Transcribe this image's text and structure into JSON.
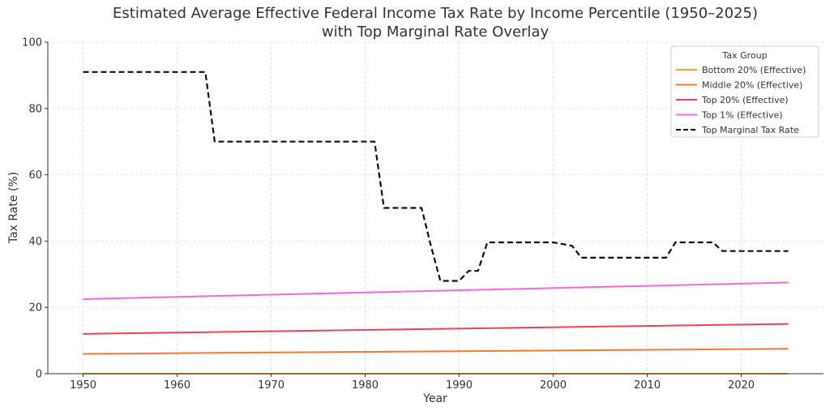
{
  "chart_data": {
    "type": "line",
    "title_line1": "Estimated Average Effective Federal Income Tax Rate by Income Percentile (1950–2025)",
    "title_line2": "with Top Marginal Rate Overlay",
    "xlabel": "Year",
    "ylabel": "Tax Rate (%)",
    "xlim": [
      1946.25,
      2028.75
    ],
    "ylim": [
      0,
      100
    ],
    "xticks": [
      1950,
      1960,
      1970,
      1980,
      1990,
      2000,
      2010,
      2020
    ],
    "yticks": [
      0,
      20,
      40,
      60,
      80,
      100
    ],
    "grid": true,
    "legend": {
      "title": "Tax Group",
      "placement": "top-right"
    },
    "series": [
      {
        "name": "Bottom 20% (Effective)",
        "color": "#f5a623",
        "style": "solid",
        "x": [
          1950,
          2025
        ],
        "y": [
          0,
          0
        ]
      },
      {
        "name": "Middle 20% (Effective)",
        "color": "#f07a3a",
        "style": "solid",
        "x": [
          1950,
          2025
        ],
        "y": [
          6,
          7.5
        ]
      },
      {
        "name": "Top 20% (Effective)",
        "color": "#e8445a",
        "style": "solid",
        "x": [
          1950,
          2025
        ],
        "y": [
          12,
          15
        ]
      },
      {
        "name": "Top 1% (Effective)",
        "color": "#f06ad8",
        "style": "solid",
        "x": [
          1950,
          2025
        ],
        "y": [
          22.5,
          27.5
        ]
      },
      {
        "name": "Top Marginal Tax Rate",
        "color": "#111111",
        "style": "dashed",
        "x": [
          1950,
          1963,
          1964,
          1981,
          1982,
          1986,
          1987,
          1988,
          1990,
          1991,
          1992,
          1993,
          2000,
          2002,
          2003,
          2012,
          2013,
          2017,
          2018,
          2025
        ],
        "y": [
          91,
          91,
          70,
          70,
          50,
          50,
          38.5,
          28,
          28,
          31,
          31,
          39.6,
          39.6,
          38.6,
          35,
          35,
          39.6,
          39.6,
          37,
          37
        ]
      }
    ]
  }
}
